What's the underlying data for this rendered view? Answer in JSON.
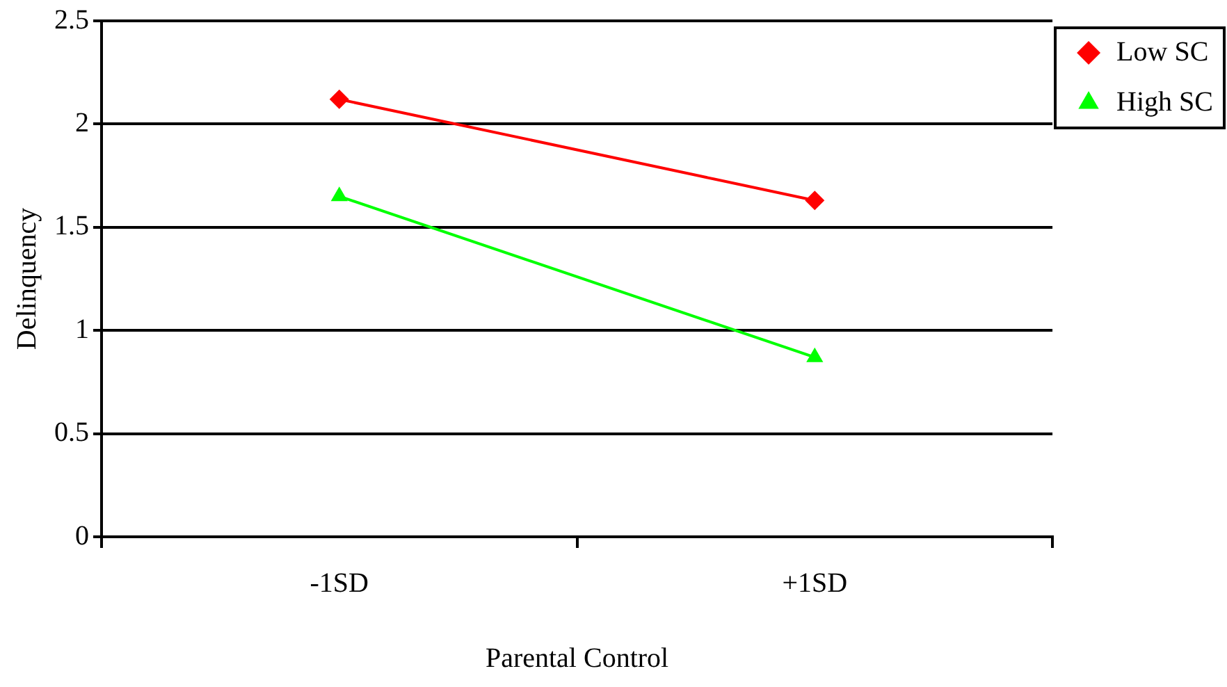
{
  "chart_data": {
    "type": "line",
    "xlabel": "Parental Control",
    "ylabel": "Delinquency",
    "categories": [
      "-1SD",
      "+1SD"
    ],
    "series": [
      {
        "name": "Low SC",
        "color": "#ff0000",
        "marker": "diamond",
        "values": [
          2.12,
          1.63
        ]
      },
      {
        "name": "High SC",
        "color": "#00ff00",
        "marker": "triangle",
        "values": [
          1.65,
          0.87
        ]
      }
    ],
    "ylim": [
      0,
      2.5
    ],
    "yticks": [
      0,
      0.5,
      1,
      1.5,
      2,
      2.5
    ],
    "grid": "y",
    "legend": "right",
    "line_style": "solid"
  }
}
